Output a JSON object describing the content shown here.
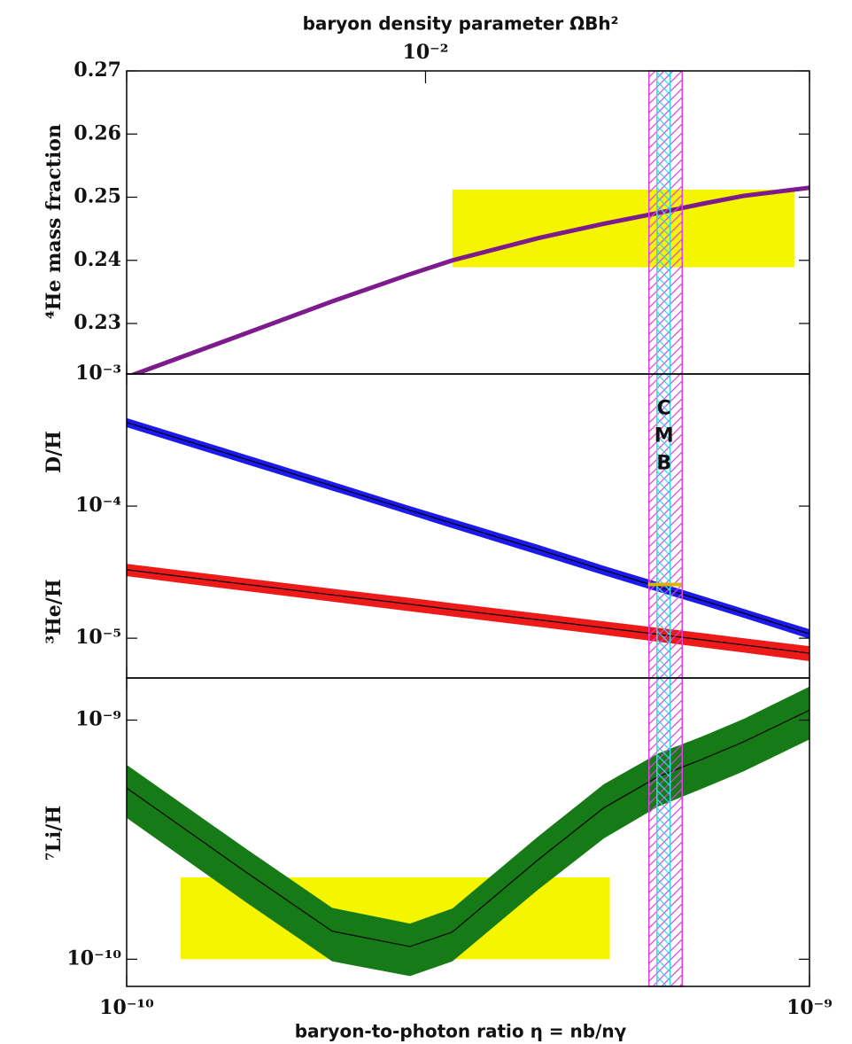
{
  "chart_data": [
    {
      "type": "line",
      "x2label": "baryon density parameter ΩBh²",
      "x2lim": [
        0.00365,
        0.0365
      ],
      "x2ticks": [
        {
          "value": 0.01,
          "label": "10⁻²"
        }
      ],
      "ylabel": "⁴He mass fraction",
      "ylim": [
        0.222,
        0.27
      ],
      "yticks": [
        0.23,
        0.24,
        0.25,
        0.26,
        0.27
      ],
      "x": [
        1e-10,
        1.5e-10,
        2e-10,
        2.6e-10,
        3e-10,
        4e-10,
        5e-10,
        6e-10,
        7e-10,
        8e-10,
        1e-09
      ],
      "series": [
        {
          "color": "#7d1a8c",
          "values": [
            0.2215,
            0.2285,
            0.2335,
            0.2378,
            0.24,
            0.2435,
            0.2458,
            0.2475,
            0.249,
            0.2502,
            0.2515
          ]
        }
      ],
      "boxes": [
        {
          "xlim": [
            3e-10,
            9.5e-10
          ],
          "ylim": [
            0.2389,
            0.2512
          ],
          "color": "#f5f500"
        }
      ]
    },
    {
      "type": "line",
      "log_y": true,
      "ylabels": [
        "D/H",
        "³He/H"
      ],
      "ylim": [
        5e-06,
        0.001
      ],
      "yticks": [
        {
          "value": 1e-05,
          "label": "10⁻⁵"
        },
        {
          "value": 0.0001,
          "label": "10⁻⁴"
        },
        {
          "value": 0.001,
          "label": "10⁻³"
        }
      ],
      "x": [
        1e-10,
        1.5e-10,
        2e-10,
        2.6e-10,
        3e-10,
        4e-10,
        5e-10,
        6e-10,
        7e-10,
        8e-10,
        1e-09
      ],
      "series": [
        {
          "color": "#1a1aee",
          "values": [
            0.00043,
            0.000225,
            0.000142,
            9.3e-05,
            7.4e-05,
            4.7e-05,
            3.27e-05,
            2.45e-05,
            1.92e-05,
            1.55e-05,
            1.08e-05
          ],
          "lower": [
            0.000396,
            0.000207,
            0.000131,
            8.6e-05,
            6.8e-05,
            4.3e-05,
            3e-05,
            2.25e-05,
            1.77e-05,
            1.43e-05,
            9.9e-06
          ],
          "upper": [
            0.000464,
            0.000243,
            0.000153,
            0.0001,
            8e-05,
            5.1e-05,
            3.53e-05,
            2.65e-05,
            2.07e-05,
            1.67e-05,
            1.17e-05
          ]
        },
        {
          "color": "#ee1a1a",
          "values": [
            3.3e-05,
            2.55e-05,
            2.13e-05,
            1.81e-05,
            1.65e-05,
            1.38e-05,
            1.2e-05,
            1.07e-05,
            9.7e-06,
            8.9e-06,
            7.7e-06
          ],
          "lower": [
            2.95e-05,
            2.27e-05,
            1.89e-05,
            1.6e-05,
            1.46e-05,
            1.22e-05,
            1.06e-05,
            9.4e-06,
            8.5e-06,
            7.8e-06,
            6.7e-06
          ],
          "upper": [
            3.65e-05,
            2.83e-05,
            2.37e-05,
            2.02e-05,
            1.84e-05,
            1.54e-05,
            1.34e-05,
            1.2e-05,
            1.09e-05,
            1e-05,
            8.7e-06
          ]
        }
      ],
      "cmb": {
        "label": "CMB",
        "outer": [
          5.82e-10,
          6.51e-10
        ],
        "inner": [
          5.98e-10,
          6.25e-10
        ],
        "outer_color": "#e040e0",
        "inner_color": "#30d8e8"
      },
      "obs_line": {
        "x": [
          5.8e-10,
          6.5e-10
        ],
        "value": 2.55e-05,
        "color": "#d8b400"
      }
    },
    {
      "type": "line",
      "log_y": true,
      "ylabel": "⁷Li/H",
      "ylim": [
        7.7e-11,
        1.5e-09
      ],
      "yticks": [
        {
          "value": 1e-10,
          "label": "10⁻¹⁰"
        },
        {
          "value": 1e-09,
          "label": "10⁻⁹"
        }
      ],
      "xlabel": "baryon-to-photon ratio η = nb/nγ",
      "xlim": [
        1e-10,
        1e-09
      ],
      "xticks": [
        {
          "value": 1e-10,
          "label": "10⁻¹⁰"
        },
        {
          "value": 1e-09,
          "label": "10⁻⁹"
        }
      ],
      "x": [
        1e-10,
        1.5e-10,
        2e-10,
        2.6e-10,
        3e-10,
        4e-10,
        5e-10,
        6e-10,
        7e-10,
        8e-10,
        1e-09
      ],
      "series": [
        {
          "color": "#167a16",
          "values": [
            5.2e-10,
            2.3e-10,
            1.31e-10,
            1.13e-10,
            1.3e-10,
            2.6e-10,
            4.3e-10,
            5.8e-10,
            6.9e-10,
            8.1e-10,
            1.1e-09
          ],
          "lower": [
            3.9e-10,
            1.72e-10,
            9.8e-11,
            8.5e-11,
            9.8e-11,
            1.95e-10,
            3.2e-10,
            4.35e-10,
            5.2e-10,
            6.1e-10,
            8.3e-10
          ],
          "upper": [
            6.5e-10,
            2.88e-10,
            1.64e-10,
            1.41e-10,
            1.63e-10,
            3.25e-10,
            5.4e-10,
            7.25e-10,
            8.6e-10,
            1.01e-09,
            1.38e-09
          ]
        }
      ],
      "boxes": [
        {
          "xlim": [
            1.2e-10,
            5.1e-10
          ],
          "ylim": [
            1e-10,
            2.2e-10
          ],
          "color": "#f5f500"
        }
      ]
    }
  ]
}
